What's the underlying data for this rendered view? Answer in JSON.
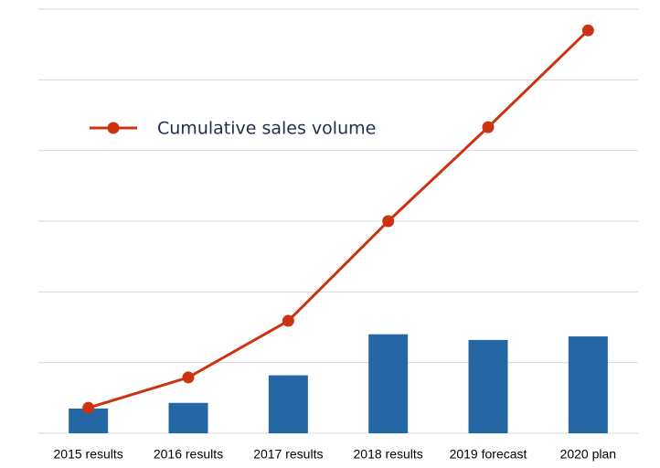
{
  "chart_data": {
    "type": "bar_line",
    "categories": [
      "2015 results",
      "2016 results",
      "2017 results",
      "2018 results",
      "2019 forecast",
      "2020 plan"
    ],
    "series": [
      {
        "type": "bar",
        "color": "#2566a5",
        "values": [
          0.35,
          0.43,
          0.82,
          1.4,
          1.32,
          1.37
        ]
      },
      {
        "type": "line",
        "name": "Cumulative sales volume",
        "color": "#cc3311",
        "values": [
          0.36,
          0.79,
          1.59,
          3.0,
          4.33,
          5.7
        ]
      }
    ],
    "ylim": [
      0,
      6
    ],
    "yticks": [
      0,
      1,
      2,
      3,
      4,
      5,
      6
    ],
    "grid": true,
    "legend": "upper left"
  }
}
